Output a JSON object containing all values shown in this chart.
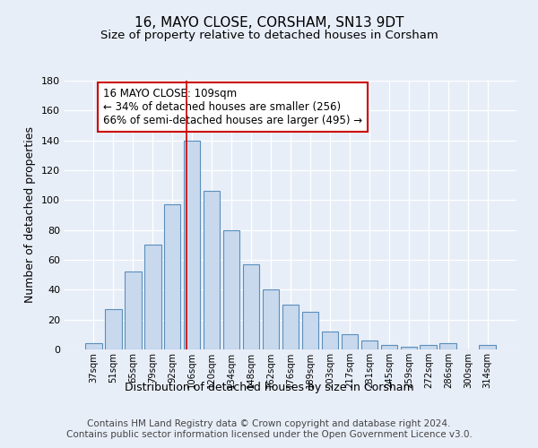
{
  "title1": "16, MAYO CLOSE, CORSHAM, SN13 9DT",
  "title2": "Size of property relative to detached houses in Corsham",
  "xlabel": "Distribution of detached houses by size in Corsham",
  "ylabel": "Number of detached properties",
  "categories": [
    "37sqm",
    "51sqm",
    "65sqm",
    "79sqm",
    "92sqm",
    "106sqm",
    "120sqm",
    "134sqm",
    "148sqm",
    "162sqm",
    "176sqm",
    "189sqm",
    "203sqm",
    "217sqm",
    "231sqm",
    "245sqm",
    "259sqm",
    "272sqm",
    "286sqm",
    "300sqm",
    "314sqm"
  ],
  "values": [
    4,
    27,
    52,
    70,
    97,
    140,
    106,
    80,
    57,
    40,
    30,
    25,
    12,
    10,
    6,
    3,
    2,
    3,
    4,
    0,
    3
  ],
  "bar_color": "#c8d9ee",
  "bar_edge_color": "#5a8fbb",
  "vline_color": "#cc0000",
  "annotation_text": "16 MAYO CLOSE: 109sqm\n← 34% of detached houses are smaller (256)\n66% of semi-detached houses are larger (495) →",
  "annotation_box_color": "#ffffff",
  "annotation_box_edge_color": "#cc0000",
  "ylim": [
    0,
    180
  ],
  "yticks": [
    0,
    20,
    40,
    60,
    80,
    100,
    120,
    140,
    160,
    180
  ],
  "bg_color": "#e8eef8",
  "plot_bg_color": "#e8eef8",
  "footer": "Contains HM Land Registry data © Crown copyright and database right 2024.\nContains public sector information licensed under the Open Government Licence v3.0.",
  "title1_fontsize": 11,
  "title2_fontsize": 9.5,
  "xlabel_fontsize": 9,
  "ylabel_fontsize": 9,
  "footer_fontsize": 7.5,
  "annotation_fontsize": 8.5
}
